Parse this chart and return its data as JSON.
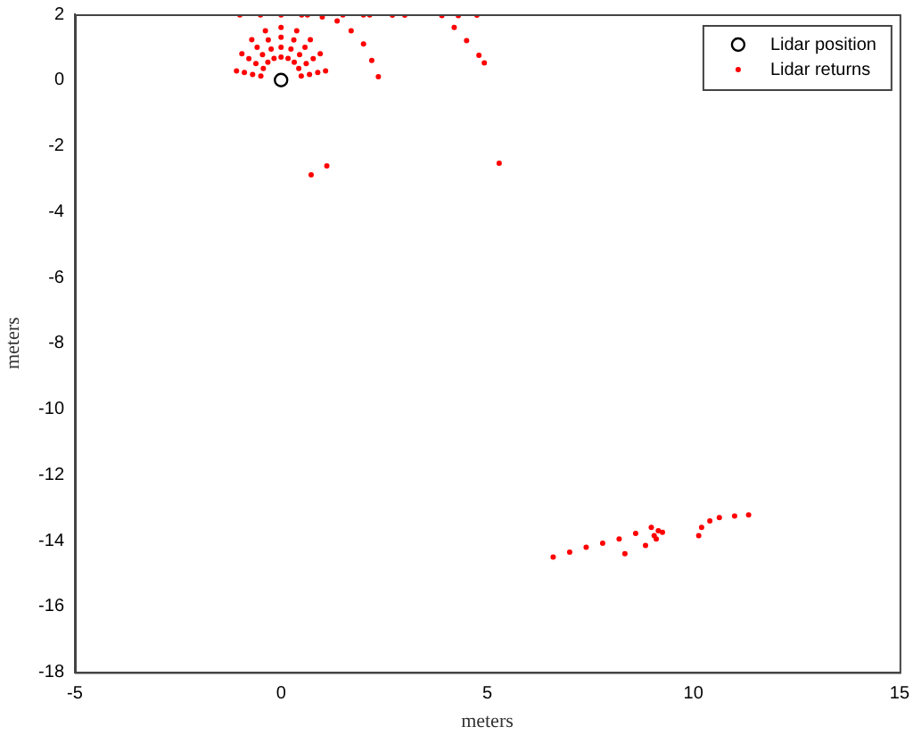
{
  "chart_data": {
    "type": "scatter",
    "xlabel": "meters",
    "ylabel": "meters",
    "xlim": [
      -5,
      15
    ],
    "xticks": [
      -5,
      0,
      5,
      10,
      15
    ],
    "ylim": [
      -18,
      2
    ],
    "yticks": [
      -18,
      -16,
      -14,
      -12,
      -10,
      -8,
      -6,
      -4,
      -2,
      0,
      2
    ],
    "grid": false,
    "legend": "top right",
    "marker": "circle",
    "series": [
      {
        "name": "Lidar position",
        "color": "#000000",
        "x": [
          0
        ],
        "values": [
          0
        ]
      },
      {
        "name": "Lidar returns",
        "color": "#ff0000",
        "x": [
          -1.08,
          -0.95,
          -0.71,
          -0.38,
          0,
          0.38,
          0.71,
          0.95,
          1.08,
          -0.89,
          -0.78,
          -0.58,
          -0.31,
          0,
          0.31,
          0.58,
          0.78,
          0.89,
          -0.69,
          -0.61,
          -0.45,
          -0.24,
          0,
          0.24,
          0.45,
          0.61,
          0.69,
          -0.49,
          -0.43,
          -0.32,
          -0.17,
          0,
          0.17,
          0.32,
          0.43,
          0.49,
          -1.0,
          -0.5,
          0,
          0.5,
          2.15,
          1.5,
          2.0,
          0.64,
          1.0,
          1.36,
          1.7,
          2.0,
          2.2,
          2.36,
          2.7,
          3.0,
          3.9,
          4.3,
          4.75,
          4.2,
          4.5,
          4.8,
          4.93,
          0.73,
          1.11,
          5.29,
          6.6,
          7.0,
          7.4,
          7.8,
          8.2,
          8.6,
          8.98,
          9.05,
          9.15,
          9.25,
          9.1,
          8.34,
          8.84,
          10.13,
          10.2,
          10.4,
          10.63,
          11.0,
          11.34
        ],
        "values": [
          0.28,
          0.8,
          1.23,
          1.5,
          1.6,
          1.5,
          1.23,
          0.8,
          0.28,
          0.23,
          0.65,
          1.0,
          1.22,
          1.3,
          1.22,
          1.0,
          0.65,
          0.23,
          0.17,
          0.5,
          0.77,
          0.94,
          1.0,
          0.94,
          0.77,
          0.5,
          0.17,
          0.12,
          0.35,
          0.54,
          0.66,
          0.7,
          0.66,
          0.54,
          0.35,
          0.12,
          1.98,
          1.98,
          1.98,
          1.98,
          1.98,
          1.98,
          1.98,
          1.98,
          1.92,
          1.8,
          1.5,
          1.1,
          0.6,
          0.1,
          1.97,
          1.97,
          1.96,
          1.96,
          1.97,
          1.6,
          1.2,
          0.75,
          0.52,
          -2.88,
          -2.61,
          -2.53,
          -14.5,
          -14.35,
          -14.2,
          -14.08,
          -13.95,
          -13.78,
          -13.6,
          -13.85,
          -13.7,
          -13.75,
          -13.95,
          -14.4,
          -14.15,
          -13.85,
          -13.6,
          -13.4,
          -13.3,
          -13.25,
          -13.22
        ]
      }
    ]
  }
}
